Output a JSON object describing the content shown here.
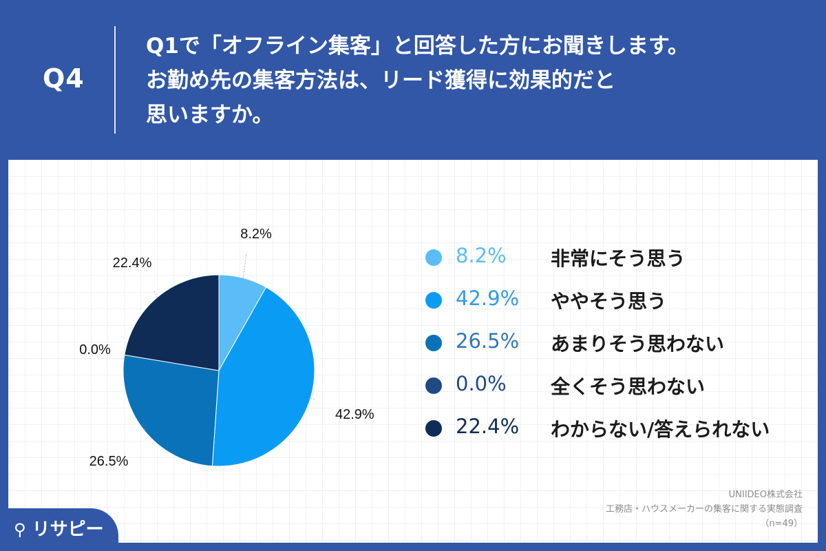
{
  "header": {
    "q_label": "Q4",
    "question_lines": [
      "Q1で「オフライン集客」と回答した方にお聞きします。",
      "お勤め先の集客方法は、リード獲得に効果的だと",
      "思いますか。"
    ]
  },
  "chart_data": {
    "type": "pie",
    "unit": "%",
    "slices": [
      {
        "label": "非常にそう思う",
        "value": 8.2,
        "display": "8.2%",
        "color": "#5bbcf7"
      },
      {
        "label": "ややそう思う",
        "value": 42.9,
        "display": "42.9%",
        "color": "#0a9cf5"
      },
      {
        "label": "あまりそう思わない",
        "value": 26.5,
        "display": "26.5%",
        "color": "#0a72b8"
      },
      {
        "label": "全くそう思わない",
        "value": 0.0,
        "display": "0.0%",
        "color": "#1f4a84"
      },
      {
        "label": "わからない/答えられない",
        "value": 22.4,
        "display": "22.4%",
        "color": "#0e2c55"
      }
    ],
    "legend_position": "right"
  },
  "legend_text_colors": [
    "#5bbcf7",
    "#2f9be8",
    "#2f77bd",
    "#1f4a84",
    "#0e2c55"
  ],
  "credit": {
    "company": "UNIIDEO株式会社",
    "survey": "工務店・ハウスメーカーの集客に関する実態調査",
    "sample": "（n=49）"
  },
  "logo": {
    "text": "リサピー",
    "icon": "location-pin-icon"
  }
}
